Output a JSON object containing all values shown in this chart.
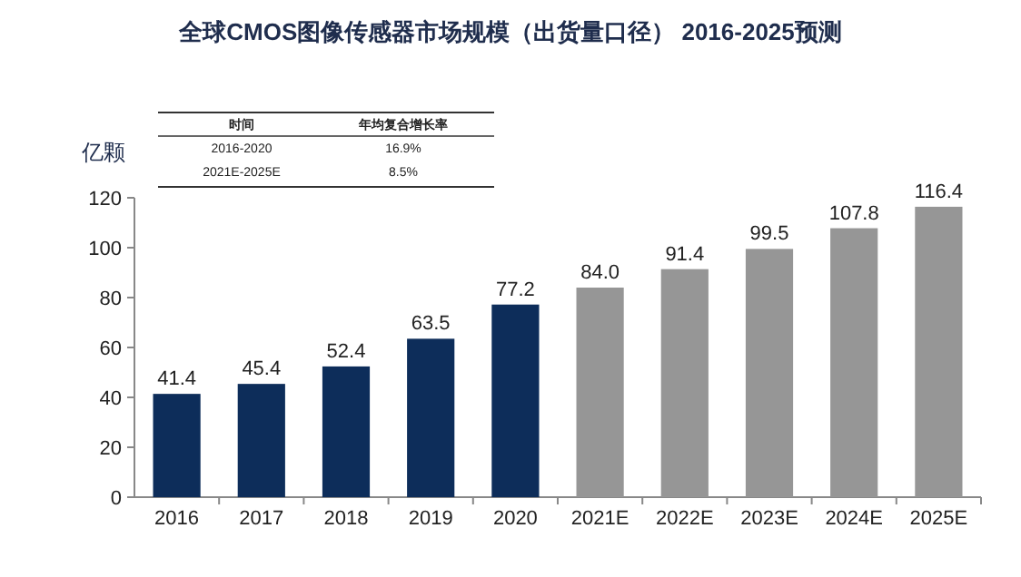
{
  "chart_data": {
    "type": "bar",
    "title": "全球CMOS图像传感器市场规模（出货量口径） 2016-2025预测",
    "ylabel": "亿颗",
    "categories": [
      "2016",
      "2017",
      "2018",
      "2019",
      "2020",
      "2021E",
      "2022E",
      "2023E",
      "2024E",
      "2025E"
    ],
    "values": [
      41.4,
      45.4,
      52.4,
      63.5,
      77.2,
      84.0,
      91.4,
      99.5,
      107.8,
      116.4
    ],
    "value_labels": [
      "41.4",
      "45.4",
      "52.4",
      "63.5",
      "77.2",
      "84.0",
      "91.4",
      "99.5",
      "107.8",
      "116.4"
    ],
    "colors": [
      "#0d2d5a",
      "#0d2d5a",
      "#0d2d5a",
      "#0d2d5a",
      "#0d2d5a",
      "#969696",
      "#969696",
      "#969696",
      "#969696",
      "#969696"
    ],
    "ylim": [
      0,
      120
    ],
    "yticks": [
      0,
      20,
      40,
      60,
      80,
      100,
      120
    ],
    "annotations": [
      "时间",
      "年均复合增长率",
      "2016-2020",
      "16.9%",
      "2021E-2025E",
      "8.5%"
    ]
  }
}
